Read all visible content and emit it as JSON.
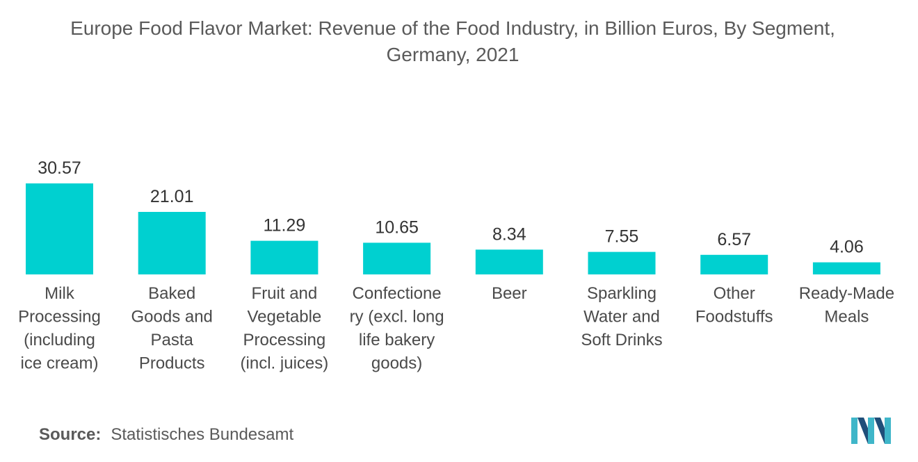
{
  "chart_data": {
    "type": "bar",
    "title": "Europe Food Flavor Market: Revenue of the Food Industry, in Billion Euros, By Segment, Germany, 2021",
    "title_lines": [
      "Europe Food Flavor Market: Revenue of the Food Industry, in Billion Euros, By Segment,",
      "Germany, 2021"
    ],
    "categories": [
      [
        "Milk",
        "Processing",
        "(including",
        "ice cream)"
      ],
      [
        "Baked",
        "Goods and",
        "Pasta",
        "Products"
      ],
      [
        "Fruit and",
        "Vegetable",
        "Processing",
        "(incl. juices)"
      ],
      [
        "Confectione",
        "ry (excl. long",
        "life bakery",
        "goods)"
      ],
      [
        "Beer"
      ],
      [
        "Sparkling",
        "Water and",
        "Soft Drinks"
      ],
      [
        "Other",
        "Foodstuffs"
      ],
      [
        "Ready-Made",
        "Meals"
      ]
    ],
    "values": [
      30.57,
      21.01,
      11.29,
      10.65,
      8.34,
      7.55,
      6.57,
      4.06
    ],
    "value_labels": [
      "30.57",
      "21.01",
      "11.29",
      "10.65",
      "8.34",
      "7.55",
      "6.57",
      "4.06"
    ],
    "ylim": [
      0,
      30.57
    ],
    "xlabel": "",
    "ylabel": "",
    "grid": false,
    "bar_color": "#00d0d0"
  },
  "source": {
    "label": "Source:",
    "text": "Statistisches Bundesamt"
  },
  "logo": {
    "icon": "mordor-intelligence-logo-icon",
    "colors": [
      "#1f4e79",
      "#3fb6c9"
    ]
  }
}
